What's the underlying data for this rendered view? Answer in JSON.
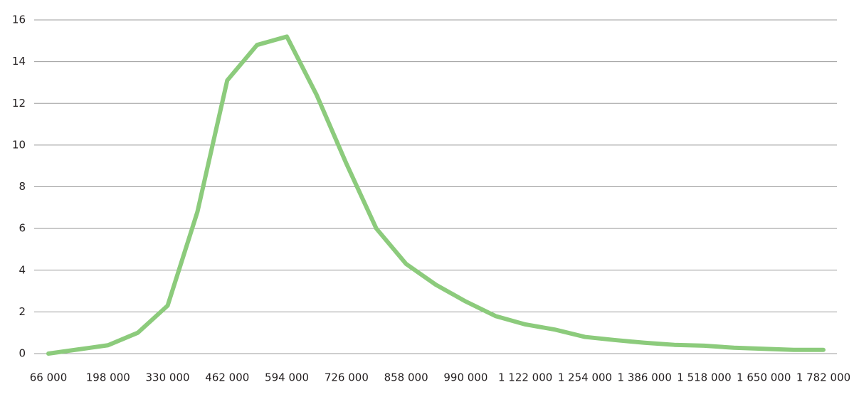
{
  "chart_data": {
    "type": "line",
    "categories": [
      "66 000",
      null,
      "198 000",
      null,
      "330 000",
      null,
      "462 000",
      null,
      "594 000",
      null,
      "726 000",
      null,
      "858 000",
      null,
      "990 000",
      null,
      "1 122 000",
      null,
      "1 254 000",
      null,
      "1 386 000",
      null,
      "1 518 000",
      null,
      "1 650 000",
      null,
      "1 782 000"
    ],
    "series": [
      {
        "color": "#8ccb7c",
        "values": [
          0,
          0.2,
          0.4,
          1.0,
          2.3,
          6.8,
          13.1,
          14.8,
          15.2,
          12.4,
          9.1,
          6.0,
          4.3,
          3.3,
          2.5,
          1.8,
          1.4,
          1.15,
          0.8,
          0.65,
          0.52,
          0.42,
          0.38,
          0.28,
          0.23,
          0.18,
          0.18
        ]
      }
    ],
    "ylim": [
      0,
      16
    ],
    "yticks": [
      0,
      2,
      4,
      6,
      8,
      10,
      12,
      14,
      16
    ],
    "grid": true
  }
}
